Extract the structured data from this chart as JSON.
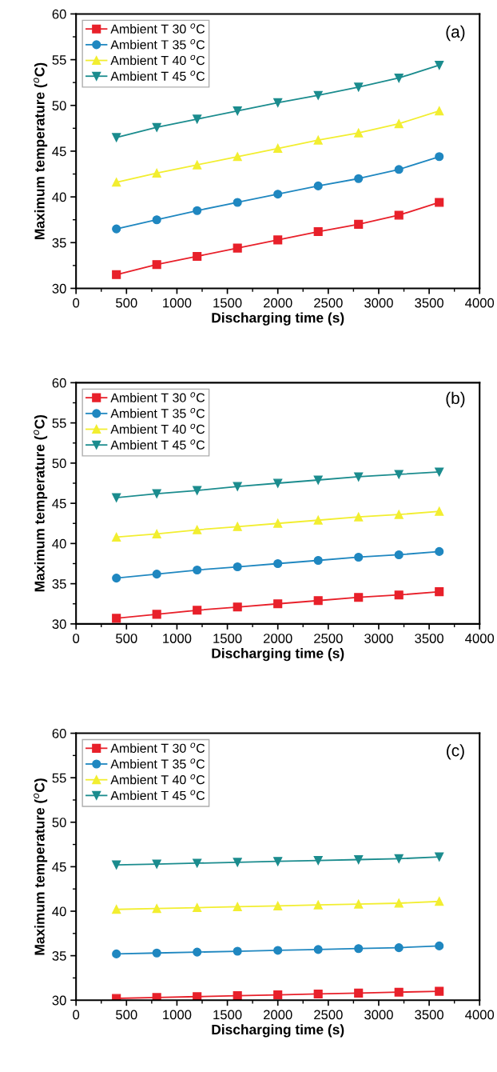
{
  "chart_data": [
    {
      "type": "line",
      "annotations": [
        "(a)"
      ],
      "xlabel": "Discharging time (s)",
      "ylabel": "Maximum temperature ($^{o}$C)",
      "x": [
        400,
        800,
        1200,
        1600,
        2000,
        2400,
        2800,
        3200,
        3600
      ],
      "xlim": [
        0,
        4000
      ],
      "xticks": [
        0,
        500,
        1000,
        1500,
        2000,
        2500,
        3000,
        3500,
        4000
      ],
      "ylim": [
        30,
        60
      ],
      "yticks": [
        30,
        35,
        40,
        45,
        50,
        55,
        60
      ],
      "grid": false,
      "legend": "top left",
      "series": [
        {
          "name": "Ambient T 30 $^{o}$C",
          "color": "#e8202a",
          "marker": "square",
          "values": [
            31.5,
            32.6,
            33.5,
            34.4,
            35.3,
            36.2,
            37.0,
            38.0,
            39.4
          ]
        },
        {
          "name": "Ambient T 35 $^{o}$C",
          "color": "#1f87c0",
          "marker": "circle",
          "values": [
            36.5,
            37.5,
            38.5,
            39.4,
            40.3,
            41.2,
            42.0,
            43.0,
            44.4
          ]
        },
        {
          "name": "Ambient T 40 $^{o}$C",
          "color": "#f2ee30",
          "marker": "triangle",
          "values": [
            41.6,
            42.6,
            43.5,
            44.4,
            45.3,
            46.2,
            47.0,
            48.0,
            49.4
          ]
        },
        {
          "name": "Ambient T 45 $^{o}$C",
          "color": "#1b8c8e",
          "marker": "triangle_down",
          "values": [
            46.5,
            47.6,
            48.5,
            49.4,
            50.3,
            51.1,
            52.0,
            53.0,
            54.4
          ]
        }
      ]
    },
    {
      "type": "line",
      "annotations": [
        "(b)"
      ],
      "xlabel": "Discharging time (s)",
      "ylabel": "Maximum temperature ($^{o}$C)",
      "x": [
        400,
        800,
        1200,
        1600,
        2000,
        2400,
        2800,
        3200,
        3600
      ],
      "xlim": [
        0,
        4000
      ],
      "xticks": [
        0,
        500,
        1000,
        1500,
        2000,
        2500,
        3000,
        3500,
        4000
      ],
      "ylim": [
        30,
        60
      ],
      "yticks": [
        30,
        35,
        40,
        45,
        50,
        55,
        60
      ],
      "grid": false,
      "legend": "top left",
      "series": [
        {
          "name": "Ambient T 30 $^{o}$C",
          "color": "#e8202a",
          "marker": "square",
          "values": [
            30.7,
            31.2,
            31.7,
            32.1,
            32.5,
            32.9,
            33.3,
            33.6,
            34.0
          ]
        },
        {
          "name": "Ambient T 35 $^{o}$C",
          "color": "#1f87c0",
          "marker": "circle",
          "values": [
            35.7,
            36.2,
            36.7,
            37.1,
            37.5,
            37.9,
            38.3,
            38.6,
            39.0
          ]
        },
        {
          "name": "Ambient T 40 $^{o}$C",
          "color": "#f2ee30",
          "marker": "triangle",
          "values": [
            40.8,
            41.2,
            41.7,
            42.1,
            42.5,
            42.9,
            43.3,
            43.6,
            44.0
          ]
        },
        {
          "name": "Ambient T 45 $^{o}$C",
          "color": "#1b8c8e",
          "marker": "triangle_down",
          "values": [
            45.7,
            46.2,
            46.6,
            47.1,
            47.5,
            47.9,
            48.3,
            48.6,
            48.9
          ]
        }
      ]
    },
    {
      "type": "line",
      "annotations": [
        "(c)"
      ],
      "xlabel": "Discharging time (s)",
      "ylabel": "Maximum temperature ($^{o}$C)",
      "x": [
        400,
        800,
        1200,
        1600,
        2000,
        2400,
        2800,
        3200,
        3600
      ],
      "xlim": [
        0,
        4000
      ],
      "xticks": [
        0,
        500,
        1000,
        1500,
        2000,
        2500,
        3000,
        3500,
        4000
      ],
      "ylim": [
        30,
        60
      ],
      "yticks": [
        30,
        35,
        40,
        45,
        50,
        55,
        60
      ],
      "grid": false,
      "legend": "top left",
      "series": [
        {
          "name": "Ambient T 30 $^{o}$C",
          "color": "#e8202a",
          "marker": "square",
          "values": [
            30.2,
            30.3,
            30.4,
            30.5,
            30.6,
            30.7,
            30.8,
            30.9,
            31.0
          ]
        },
        {
          "name": "Ambient T 35 $^{o}$C",
          "color": "#1f87c0",
          "marker": "circle",
          "values": [
            35.2,
            35.3,
            35.4,
            35.5,
            35.6,
            35.7,
            35.8,
            35.9,
            36.1
          ]
        },
        {
          "name": "Ambient T 40 $^{o}$C",
          "color": "#f2ee30",
          "marker": "triangle",
          "values": [
            40.2,
            40.3,
            40.4,
            40.5,
            40.6,
            40.7,
            40.8,
            40.9,
            41.1
          ]
        },
        {
          "name": "Ambient T 45 $^{o}$C",
          "color": "#1b8c8e",
          "marker": "triangle_down",
          "values": [
            45.2,
            45.3,
            45.4,
            45.5,
            45.6,
            45.7,
            45.8,
            45.9,
            46.1
          ]
        }
      ]
    }
  ]
}
